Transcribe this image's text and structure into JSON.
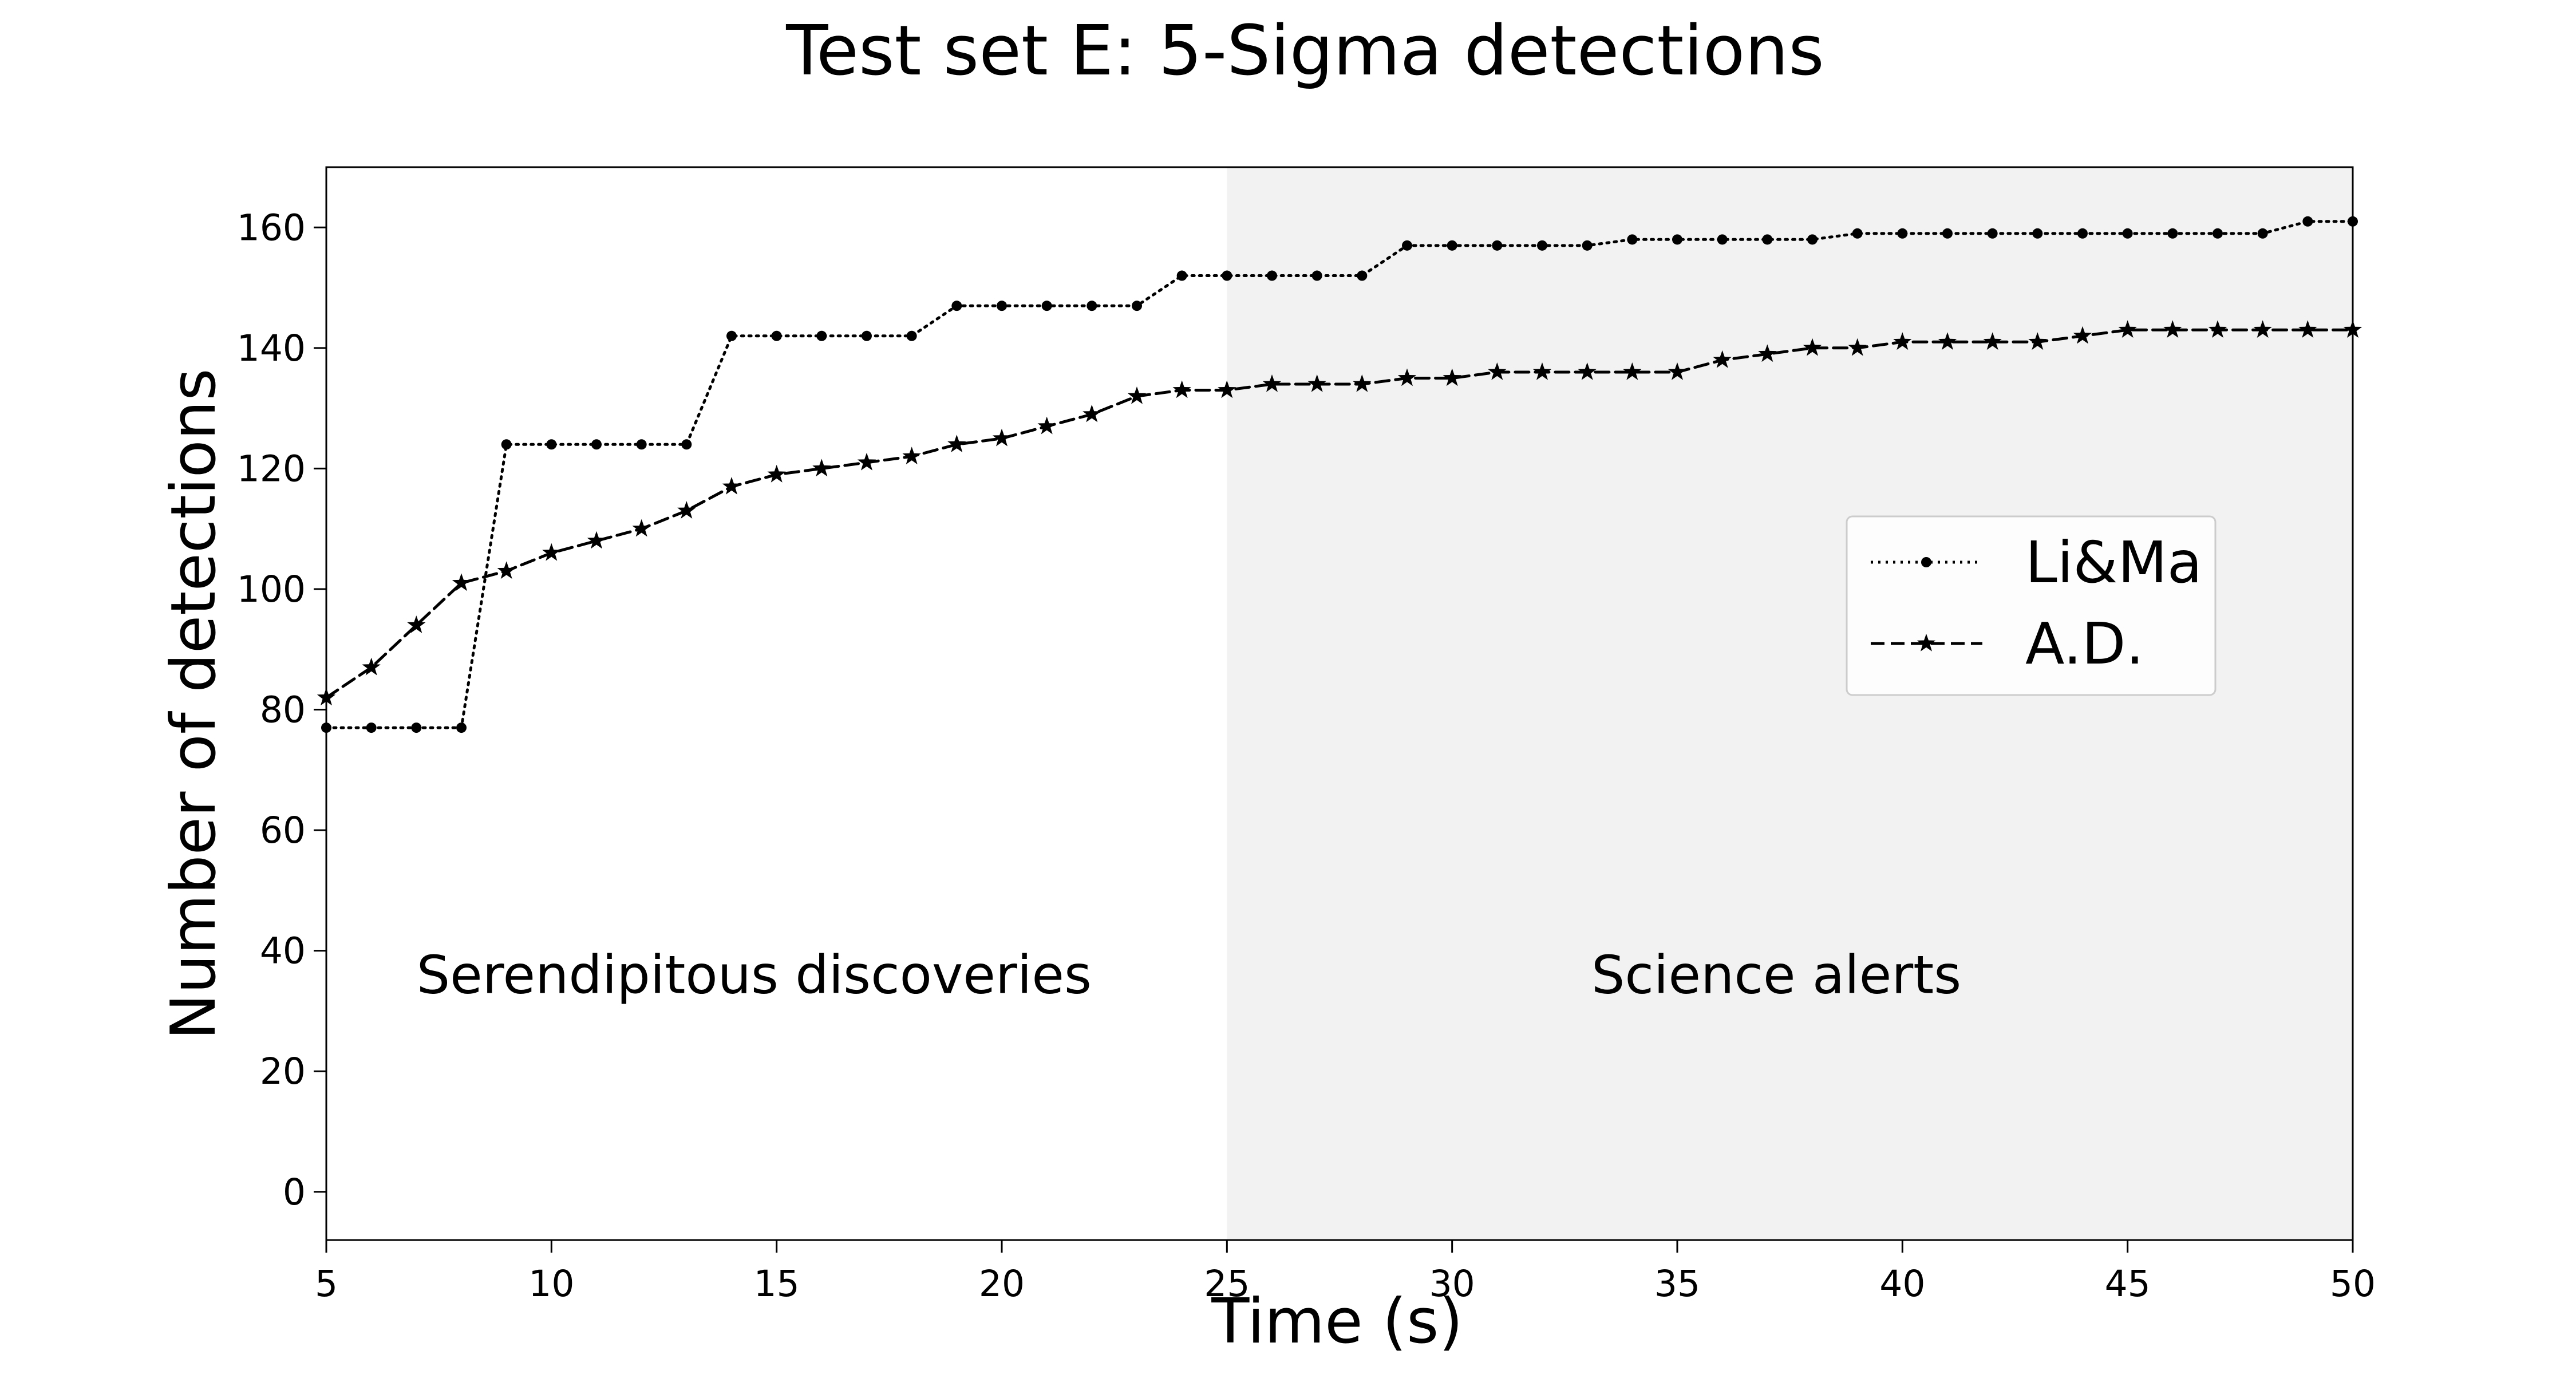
{
  "chart_data": {
    "type": "line",
    "title": "Test set E: 5-Sigma detections",
    "xlabel": "Time (s)",
    "ylabel": "Number of detections",
    "xlim": [
      5,
      50
    ],
    "ylim": [
      -8,
      170
    ],
    "xticks": [
      5,
      10,
      15,
      20,
      25,
      30,
      35,
      40,
      45,
      50
    ],
    "yticks": [
      0,
      20,
      40,
      60,
      80,
      100,
      120,
      140,
      160
    ],
    "grid": false,
    "legend_position": "center-right",
    "shaded_region": {
      "x_from": 25,
      "x_to": 50,
      "color": "#f2f2f2"
    },
    "annotations": [
      {
        "text": "Serendipitous discoveries",
        "x": 14.5,
        "y": 33
      },
      {
        "text": "Science alerts",
        "x": 37.2,
        "y": 33
      }
    ],
    "x": [
      5,
      6,
      7,
      8,
      9,
      10,
      11,
      12,
      13,
      14,
      15,
      16,
      17,
      18,
      19,
      20,
      21,
      22,
      23,
      24,
      25,
      26,
      27,
      28,
      29,
      30,
      31,
      32,
      33,
      34,
      35,
      36,
      37,
      38,
      39,
      40,
      41,
      42,
      43,
      44,
      45,
      46,
      47,
      48,
      49,
      50
    ],
    "series": [
      {
        "name": "Li&Ma",
        "line_style": "dotted",
        "marker": "dot",
        "color": "#000000",
        "values": [
          77,
          77,
          77,
          77,
          124,
          124,
          124,
          124,
          124,
          142,
          142,
          142,
          142,
          142,
          147,
          147,
          147,
          147,
          147,
          152,
          152,
          152,
          152,
          152,
          157,
          157,
          157,
          157,
          157,
          158,
          158,
          158,
          158,
          158,
          159,
          159,
          159,
          159,
          159,
          159,
          159,
          159,
          159,
          159,
          161,
          161
        ]
      },
      {
        "name": "A.D.",
        "line_style": "dashed",
        "marker": "star",
        "color": "#000000",
        "values": [
          82,
          87,
          94,
          101,
          103,
          106,
          108,
          110,
          113,
          117,
          119,
          120,
          121,
          122,
          124,
          125,
          127,
          129,
          132,
          133,
          133,
          134,
          134,
          134,
          135,
          135,
          136,
          136,
          136,
          136,
          136,
          138,
          139,
          140,
          140,
          141,
          141,
          141,
          141,
          142,
          143,
          143,
          143,
          143,
          143,
          143
        ]
      }
    ]
  }
}
